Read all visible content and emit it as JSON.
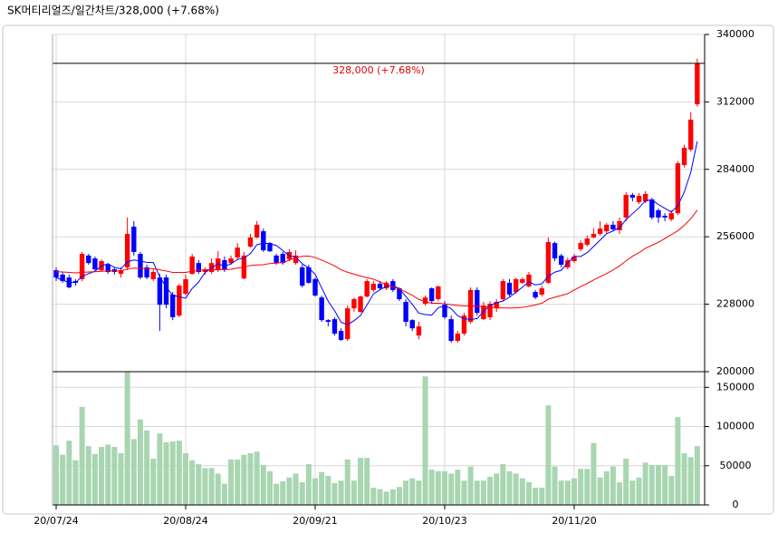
{
  "chart_data": [
    {
      "type": "candlestick",
      "title": "SK머티리얼즈/일간차트/328,000 (+7.68%)",
      "annotation": {
        "text": "328,000 (+7.68%)",
        "value": 328000
      },
      "categories": [
        "20/07/24",
        null,
        null,
        null,
        null,
        null,
        null,
        null,
        null,
        null,
        null,
        null,
        null,
        null,
        null,
        null,
        null,
        null,
        null,
        null,
        "20/08/24",
        null,
        null,
        null,
        null,
        null,
        null,
        null,
        null,
        null,
        null,
        null,
        null,
        null,
        null,
        null,
        null,
        null,
        null,
        null,
        "20/09/21",
        null,
        null,
        null,
        null,
        null,
        null,
        null,
        null,
        null,
        null,
        null,
        null,
        null,
        null,
        null,
        null,
        null,
        null,
        null,
        "20/10/23",
        null,
        null,
        null,
        null,
        null,
        null,
        null,
        null,
        null,
        null,
        null,
        null,
        null,
        null,
        null,
        null,
        null,
        null,
        null,
        "20/11/20",
        null,
        null,
        null,
        null,
        null,
        null,
        null,
        null,
        null,
        null,
        null,
        null,
        null,
        null,
        null,
        null,
        null,
        null,
        null
      ],
      "open": [
        242100,
        240300,
        239100,
        237600,
        238400,
        248200,
        247000,
        242100,
        244400,
        242500,
        240600,
        243300,
        260200,
        248900,
        243300,
        238400,
        239100,
        239100,
        232000,
        223300,
        232300,
        240600,
        245100,
        241400,
        241400,
        242100,
        246300,
        245100,
        247400,
        238700,
        251900,
        255700,
        258300,
        253400,
        248200,
        248900,
        246600,
        245100,
        243300,
        243300,
        238400,
        230800,
        221400,
        221800,
        216900,
        213500,
        226300,
        224800,
        231200,
        233900,
        236500,
        234600,
        237600,
        234600,
        229000,
        221400,
        215000,
        228200,
        234600,
        230100,
        227800,
        221800,
        212800,
        215800,
        220700,
        233900,
        221800,
        222600,
        226300,
        230100,
        236900,
        233100,
        236900,
        235400,
        233100,
        232000,
        236900,
        253400,
        248200,
        243300,
        245900,
        250800,
        252700,
        255700,
        257200,
        258300,
        261000,
        258700,
        264000,
        273400,
        270400,
        270700,
        271500,
        267000,
        264700,
        263200,
        265800,
        285800,
        292200,
        311000
      ],
      "high": [
        243300,
        241400,
        240300,
        238400,
        249700,
        248900,
        247800,
        246600,
        245100,
        243300,
        243300,
        264000,
        262500,
        249700,
        244400,
        242500,
        240600,
        240300,
        233100,
        236500,
        240300,
        248900,
        246300,
        243300,
        247000,
        250000,
        247800,
        248200,
        253400,
        249700,
        257200,
        262500,
        259400,
        253800,
        248900,
        249700,
        250800,
        250400,
        244400,
        244400,
        239100,
        231600,
        221800,
        222600,
        218000,
        227500,
        230800,
        231600,
        238400,
        237600,
        237600,
        237600,
        238400,
        235000,
        230100,
        221800,
        220700,
        231600,
        235000,
        235700,
        229300,
        223300,
        216900,
        224400,
        235000,
        235000,
        229000,
        229300,
        230100,
        238400,
        238400,
        239100,
        239100,
        241400,
        233900,
        235700,
        255700,
        254000,
        248900,
        247400,
        248900,
        254500,
        256500,
        259400,
        262500,
        261800,
        262500,
        264000,
        274500,
        274200,
        274200,
        275000,
        272200,
        267800,
        265800,
        267000,
        287400,
        294200,
        307700,
        330000
      ],
      "low": [
        237600,
        236900,
        234600,
        235700,
        237600,
        244400,
        241400,
        241400,
        240600,
        240300,
        239100,
        242100,
        248200,
        238400,
        238400,
        237600,
        216900,
        226300,
        221400,
        222600,
        231600,
        240300,
        240600,
        240300,
        240600,
        241400,
        241400,
        244400,
        246600,
        238400,
        251500,
        255300,
        249700,
        249700,
        244400,
        244400,
        245900,
        244400,
        235000,
        236500,
        231200,
        220700,
        218800,
        215000,
        212800,
        212800,
        224800,
        224400,
        230800,
        233100,
        233900,
        233900,
        233100,
        229300,
        218800,
        216900,
        213500,
        227500,
        228200,
        229300,
        221800,
        212000,
        212000,
        215000,
        219800,
        223300,
        221400,
        221400,
        224800,
        229300,
        231200,
        232300,
        236500,
        235000,
        230100,
        231200,
        236500,
        245900,
        243300,
        242500,
        245100,
        250000,
        251900,
        255300,
        256500,
        257200,
        258300,
        257200,
        262500,
        270700,
        269600,
        270000,
        263200,
        261800,
        262500,
        262500,
        265000,
        284800,
        291400,
        310000
      ],
      "close": [
        239100,
        237600,
        235000,
        236900,
        248900,
        245100,
        242500,
        245900,
        241400,
        241400,
        242100,
        257200,
        249700,
        239100,
        239100,
        241400,
        227800,
        227800,
        222600,
        235700,
        238400,
        247800,
        241400,
        242500,
        245100,
        247000,
        242500,
        247000,
        251500,
        248200,
        255700,
        261000,
        250400,
        250000,
        245100,
        245100,
        249700,
        248200,
        235700,
        236900,
        231600,
        221400,
        220700,
        215800,
        213200,
        226300,
        230100,
        231200,
        237600,
        236500,
        234600,
        236900,
        233900,
        230100,
        220700,
        218000,
        218800,
        230800,
        229300,
        235400,
        222600,
        212800,
        215800,
        223300,
        233900,
        224400,
        227500,
        228200,
        229000,
        237600,
        232000,
        238400,
        238400,
        240300,
        230800,
        234600,
        253800,
        247000,
        244400,
        246300,
        247800,
        253400,
        255300,
        257200,
        259400,
        261000,
        259100,
        262500,
        273400,
        272200,
        273000,
        273800,
        264000,
        264000,
        264000,
        265800,
        286500,
        292900,
        304600,
        328000
      ],
      "up_color": "#ff0000",
      "down_color": "#0000ff",
      "series": [
        {
          "color": "#0000ff",
          "values": [
            239000,
            238000,
            237000,
            237000,
            239500,
            240700,
            241700,
            243900,
            244800,
            243300,
            242700,
            245600,
            246400,
            245900,
            245400,
            245300,
            239400,
            235000,
            231700,
            231100,
            230500,
            234500,
            237200,
            241200,
            243000,
            244800,
            243700,
            244800,
            246600,
            247200,
            249000,
            252700,
            253400,
            253100,
            252400,
            250300,
            248100,
            247600,
            244800,
            243100,
            240400,
            234800,
            229300,
            225300,
            220500,
            219500,
            221200,
            223300,
            227700,
            232300,
            234000,
            235400,
            235900,
            234400,
            231200,
            227900,
            224300,
            223700,
            223500,
            226500,
            227400,
            226200,
            223200,
            222000,
            221700,
            222000,
            225000,
            227500,
            228600,
            229300,
            230900,
            233000,
            235100,
            237300,
            236000,
            236500,
            239600,
            241300,
            242100,
            245200,
            247900,
            247800,
            249400,
            252000,
            254600,
            257300,
            258400,
            259800,
            263100,
            265600,
            268000,
            271000,
            271300,
            269400,
            267800,
            266300,
            268900,
            274600,
            282800,
            295600
          ]
        },
        {
          "color": "#ff0000",
          "values": [
            241500,
            241400,
            241200,
            241000,
            241200,
            241400,
            241500,
            241700,
            241800,
            241800,
            241900,
            242600,
            243000,
            242900,
            242800,
            242800,
            242300,
            241800,
            241200,
            241200,
            241200,
            241700,
            242000,
            242300,
            242300,
            242400,
            242400,
            242500,
            243000,
            243400,
            244100,
            244300,
            244400,
            244900,
            245100,
            245300,
            246300,
            247300,
            247900,
            248000,
            247400,
            246300,
            245200,
            243900,
            242300,
            241300,
            240500,
            239700,
            239000,
            238400,
            237300,
            236100,
            235300,
            234300,
            233100,
            231700,
            230000,
            229100,
            228400,
            228400,
            228200,
            227800,
            227500,
            227300,
            227400,
            227200,
            227000,
            226900,
            226500,
            226500,
            226400,
            226500,
            226700,
            227200,
            227700,
            228400,
            230100,
            230900,
            231600,
            232400,
            233900,
            235300,
            236600,
            238100,
            239400,
            240700,
            242200,
            243900,
            246000,
            247900,
            249400,
            251200,
            252500,
            253700,
            255300,
            256900,
            258500,
            260800,
            263500,
            267000
          ]
        }
      ],
      "ylim": [
        200000,
        340000
      ],
      "yticks": [
        200000,
        228000,
        256000,
        284000,
        312000,
        340000
      ],
      "grid": true
    },
    {
      "type": "bar",
      "color": "#a8d6b1",
      "values": [
        76000,
        64000,
        82000,
        57000,
        125000,
        75000,
        65000,
        74000,
        77000,
        74000,
        66000,
        170000,
        84000,
        109000,
        95000,
        59000,
        91000,
        80000,
        81000,
        82000,
        66000,
        57000,
        52000,
        47000,
        47000,
        40000,
        27000,
        58000,
        58000,
        64000,
        66000,
        68000,
        51000,
        43000,
        27000,
        30000,
        35000,
        40000,
        29000,
        52000,
        34000,
        42000,
        37000,
        28000,
        31000,
        58000,
        31000,
        60000,
        60000,
        22000,
        20000,
        17000,
        20000,
        23000,
        31000,
        34000,
        31000,
        164000,
        45000,
        43000,
        43000,
        40000,
        45000,
        31000,
        49000,
        31000,
        31000,
        36000,
        40000,
        52000,
        43000,
        40000,
        34000,
        29000,
        22000,
        22000,
        127000,
        49000,
        31000,
        31000,
        34000,
        46000,
        46000,
        79000,
        35000,
        43000,
        49000,
        29000,
        59000,
        31000,
        35000,
        54000,
        51000,
        51000,
        51000,
        37000,
        112000,
        66000,
        61000,
        75000
      ],
      "ylim": [
        0,
        170000
      ],
      "yticks": [
        0,
        50000,
        100000,
        150000
      ],
      "grid": true
    }
  ]
}
